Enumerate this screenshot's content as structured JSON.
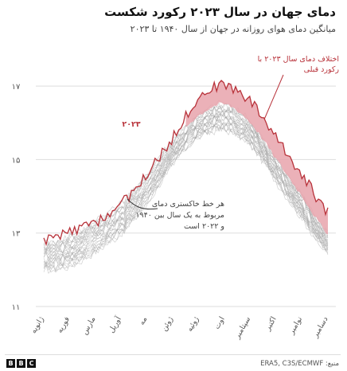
{
  "title": "دمای جهان در سال ۲۰۲۳ رکورد شکست",
  "subtitle": "میانگین دمای هوای روزانه در جهان از سال ۱۹۴۰ تا ۲۰۲۳",
  "source": "منبع: ERA5, C3S/ECMWF",
  "logo": [
    "B",
    "B",
    "C"
  ],
  "colors": {
    "record_line": "#b8323a",
    "record_fill": "#e8a3ab",
    "grey_lines": "#9e9e9e",
    "grid": "#dddddd"
  },
  "annotations": {
    "record_label_line1": "اختلاف دمای سال ۲۰۲۳ با",
    "record_label_line2": "رکورد قبلی",
    "year_label": "۲۰۲۳",
    "grey_label_line1": "هر خط خاکستری دمای",
    "grey_label_line2": "مربوط به یک سال بین ۱۹۴۰",
    "grey_label_line3": "و ۲۰۲۲ است"
  },
  "chart_data": {
    "type": "line",
    "title": "دمای جهان در سال ۲۰۲۳ رکورد شکست",
    "subtitle": "میانگین دمای هوای روزانه در جهان از سال ۱۹۴۰ تا ۲۰۲۳",
    "xlabel": "",
    "ylabel": "",
    "ylim": [
      11,
      17.5
    ],
    "yticks": [
      11,
      13,
      15,
      17
    ],
    "ytick_labels": [
      "۱۱",
      "۱۳",
      "۱۵",
      "۱۷"
    ],
    "categories": [
      "ژانویه",
      "فوریه",
      "مارس",
      "آوریل",
      "مه",
      "ژوئن",
      "ژوئیه",
      "اوت",
      "سپتامبر",
      "اکتبر",
      "نوامبر",
      "دسامبر"
    ],
    "grid": true,
    "series": [
      {
        "name": "۲۰۲۳",
        "values": [
          12.8,
          13.0,
          13.3,
          13.8,
          14.6,
          15.6,
          16.7,
          17.0,
          16.6,
          15.6,
          14.6,
          13.6
        ]
      },
      {
        "name": "اختلاف دمای سال ۲۰۲۳ با رکورد قبلی",
        "values": [
          12.7,
          12.9,
          13.3,
          13.8,
          14.6,
          15.5,
          16.2,
          16.5,
          16.0,
          15.0,
          14.0,
          13.0
        ]
      },
      {
        "name": "هر خط خاکستری دمای مربوط به یک سال بین ۱۹۴۰ و ۲۰۲۲ است",
        "values_range_low": [
          12.0,
          12.1,
          12.5,
          13.0,
          13.8,
          14.9,
          15.6,
          15.8,
          15.4,
          14.4,
          13.4,
          12.5
        ],
        "values_range_high": [
          12.7,
          12.9,
          13.3,
          13.8,
          14.6,
          15.5,
          16.2,
          16.5,
          16.0,
          15.0,
          14.0,
          13.0
        ]
      }
    ]
  }
}
